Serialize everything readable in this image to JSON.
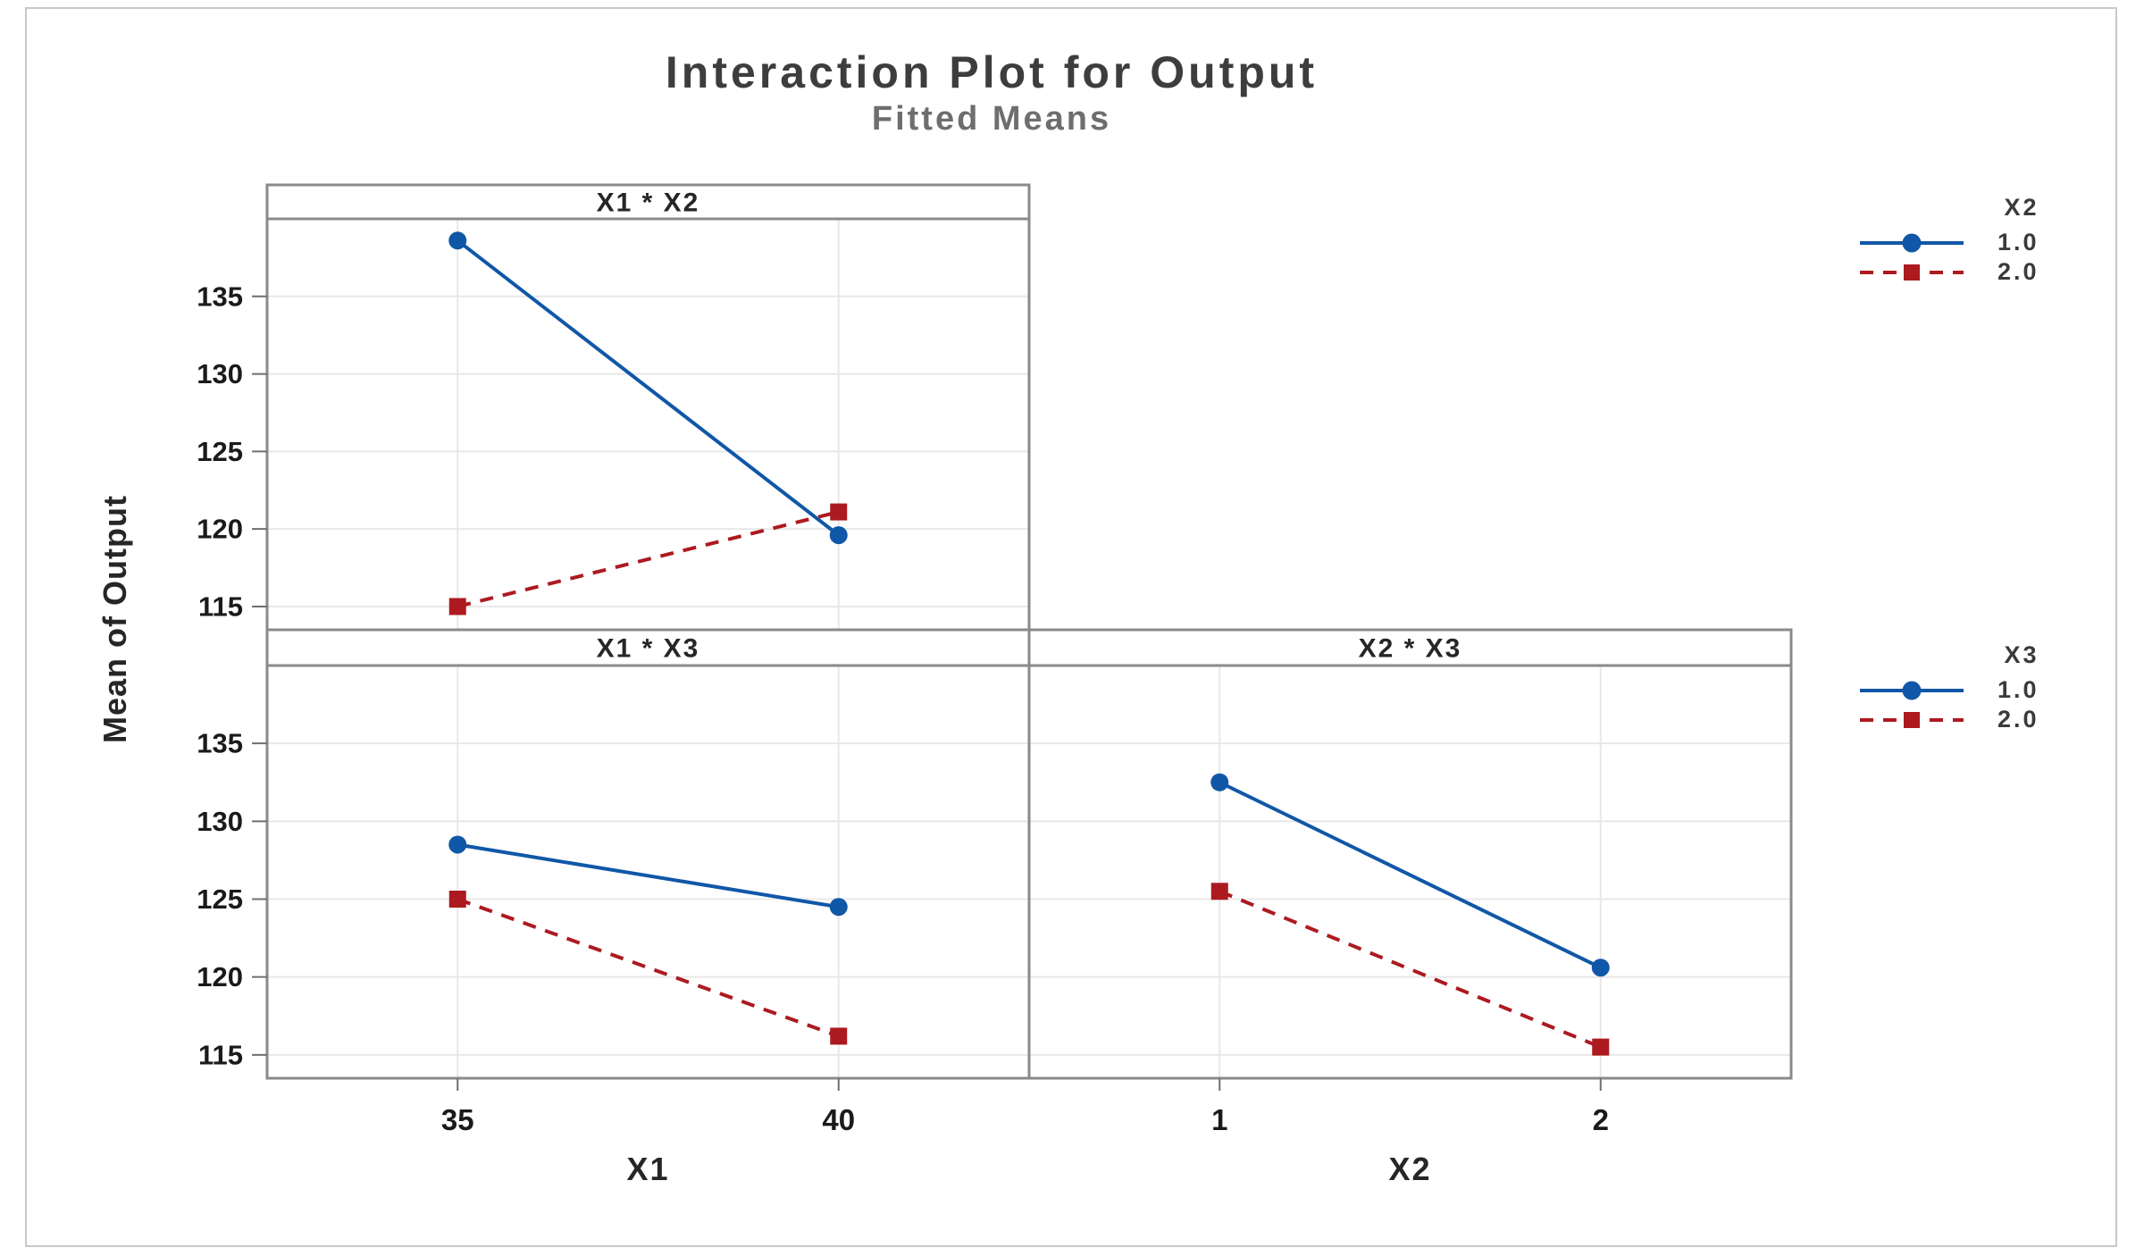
{
  "figure": {
    "title": "Interaction Plot for Output",
    "subtitle": "Fitted Means",
    "y_axis_label": "Mean of Output",
    "colors": {
      "series_blue": "#1057A7",
      "series_red": "#AC1A20",
      "panel_border": "#8a8a8a",
      "gridline": "#e8e8e8",
      "tick": "#6f6f6f",
      "tick_label": "#1a1a1a",
      "header_text": "#262626"
    }
  },
  "chart_data": [
    {
      "type": "line",
      "panel_title": "X1 * X2",
      "x_categories": [
        "35",
        "40"
      ],
      "xlabel": "X1",
      "x_axis_shown": false,
      "y_axis_shown": true,
      "grid": true,
      "yticks": [
        115,
        120,
        125,
        130,
        135
      ],
      "ylim": [
        113.5,
        140.0
      ],
      "series": [
        {
          "name": "1.0",
          "legend_factor": "X2",
          "line": "solid",
          "marker": "circle",
          "color": "#1057A7",
          "values": [
            138.6,
            119.6
          ]
        },
        {
          "name": "2.0",
          "legend_factor": "X2",
          "line": "dashed",
          "marker": "square",
          "color": "#AC1A20",
          "values": [
            115.0,
            121.1
          ]
        }
      ]
    },
    {
      "type": "line",
      "panel_title": "X1 * X3",
      "x_categories": [
        "35",
        "40"
      ],
      "xlabel": "X1",
      "x_axis_shown": true,
      "y_axis_shown": true,
      "grid": true,
      "yticks": [
        115,
        120,
        125,
        130,
        135
      ],
      "ylim": [
        113.5,
        140.0
      ],
      "series": [
        {
          "name": "1.0",
          "legend_factor": "X3",
          "line": "solid",
          "marker": "circle",
          "color": "#1057A7",
          "values": [
            128.5,
            124.5
          ]
        },
        {
          "name": "2.0",
          "legend_factor": "X3",
          "line": "dashed",
          "marker": "square",
          "color": "#AC1A20",
          "values": [
            125.0,
            116.2
          ]
        }
      ]
    },
    {
      "type": "line",
      "panel_title": "X2 * X3",
      "x_categories": [
        "1",
        "2"
      ],
      "xlabel": "X2",
      "x_axis_shown": true,
      "y_axis_shown": false,
      "grid": true,
      "yticks": [
        115,
        120,
        125,
        130,
        135
      ],
      "ylim": [
        113.5,
        140.0
      ],
      "series": [
        {
          "name": "1.0",
          "legend_factor": "X3",
          "line": "solid",
          "marker": "circle",
          "color": "#1057A7",
          "values": [
            132.5,
            120.6
          ]
        },
        {
          "name": "2.0",
          "legend_factor": "X3",
          "line": "dashed",
          "marker": "square",
          "color": "#AC1A20",
          "values": [
            125.5,
            115.5
          ]
        }
      ]
    }
  ],
  "legends": [
    {
      "title": "X2",
      "entries": [
        {
          "label": "1.0",
          "color": "#1057A7",
          "marker": "circle",
          "line": "solid"
        },
        {
          "label": "2.0",
          "color": "#AC1A20",
          "marker": "square",
          "line": "dashed"
        }
      ]
    },
    {
      "title": "X3",
      "entries": [
        {
          "label": "1.0",
          "color": "#1057A7",
          "marker": "circle",
          "line": "solid"
        },
        {
          "label": "2.0",
          "color": "#AC1A20",
          "marker": "square",
          "line": "dashed"
        }
      ]
    }
  ]
}
